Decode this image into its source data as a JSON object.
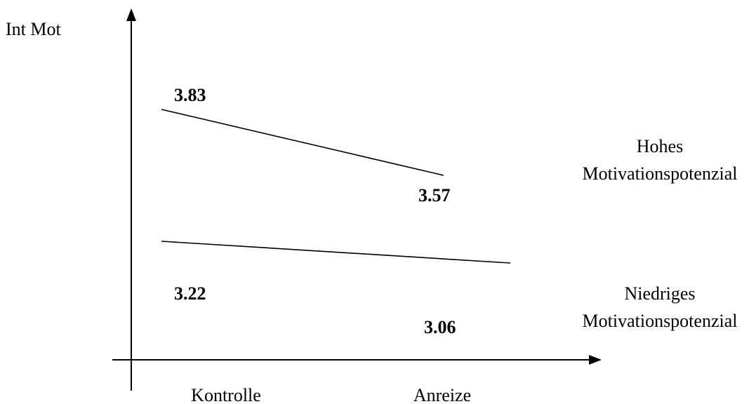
{
  "chart_data": {
    "type": "line",
    "ylabel": "Int Mot",
    "xlabel": "",
    "categories": [
      "Kontrolle",
      "Anreize"
    ],
    "series": [
      {
        "name": "Hohes Motivationspotenzial",
        "name_lines": [
          "Hohes",
          "Motivationspotenzial"
        ],
        "values": [
          3.83,
          3.57
        ],
        "value_labels": [
          "3.83",
          "3.57"
        ]
      },
      {
        "name": "Niedriges Motivationspotenzial",
        "name_lines": [
          "Niedriges",
          "Motivationspotenzial"
        ],
        "values": [
          3.22,
          3.06
        ],
        "value_labels": [
          "3.22",
          "3.06"
        ]
      }
    ],
    "grid": false,
    "legend": "right",
    "colors": {
      "line": "#000000",
      "text": "#000000"
    }
  }
}
